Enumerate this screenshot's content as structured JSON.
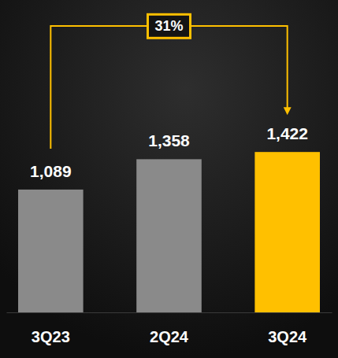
{
  "chart_data": {
    "type": "bar",
    "categories": [
      "3Q23",
      "2Q24",
      "3Q24"
    ],
    "values": [
      1089,
      1358,
      1422
    ],
    "value_labels": [
      "1,089",
      "1,358",
      "1,422"
    ],
    "colors": [
      "#8a8a8a",
      "#8a8a8a",
      "#ffc000"
    ],
    "ylim": [
      0,
      2700
    ],
    "data_labels": true,
    "tick_labels": "x",
    "grid": false,
    "annotations": [
      {
        "text": "31%"
      }
    ]
  }
}
